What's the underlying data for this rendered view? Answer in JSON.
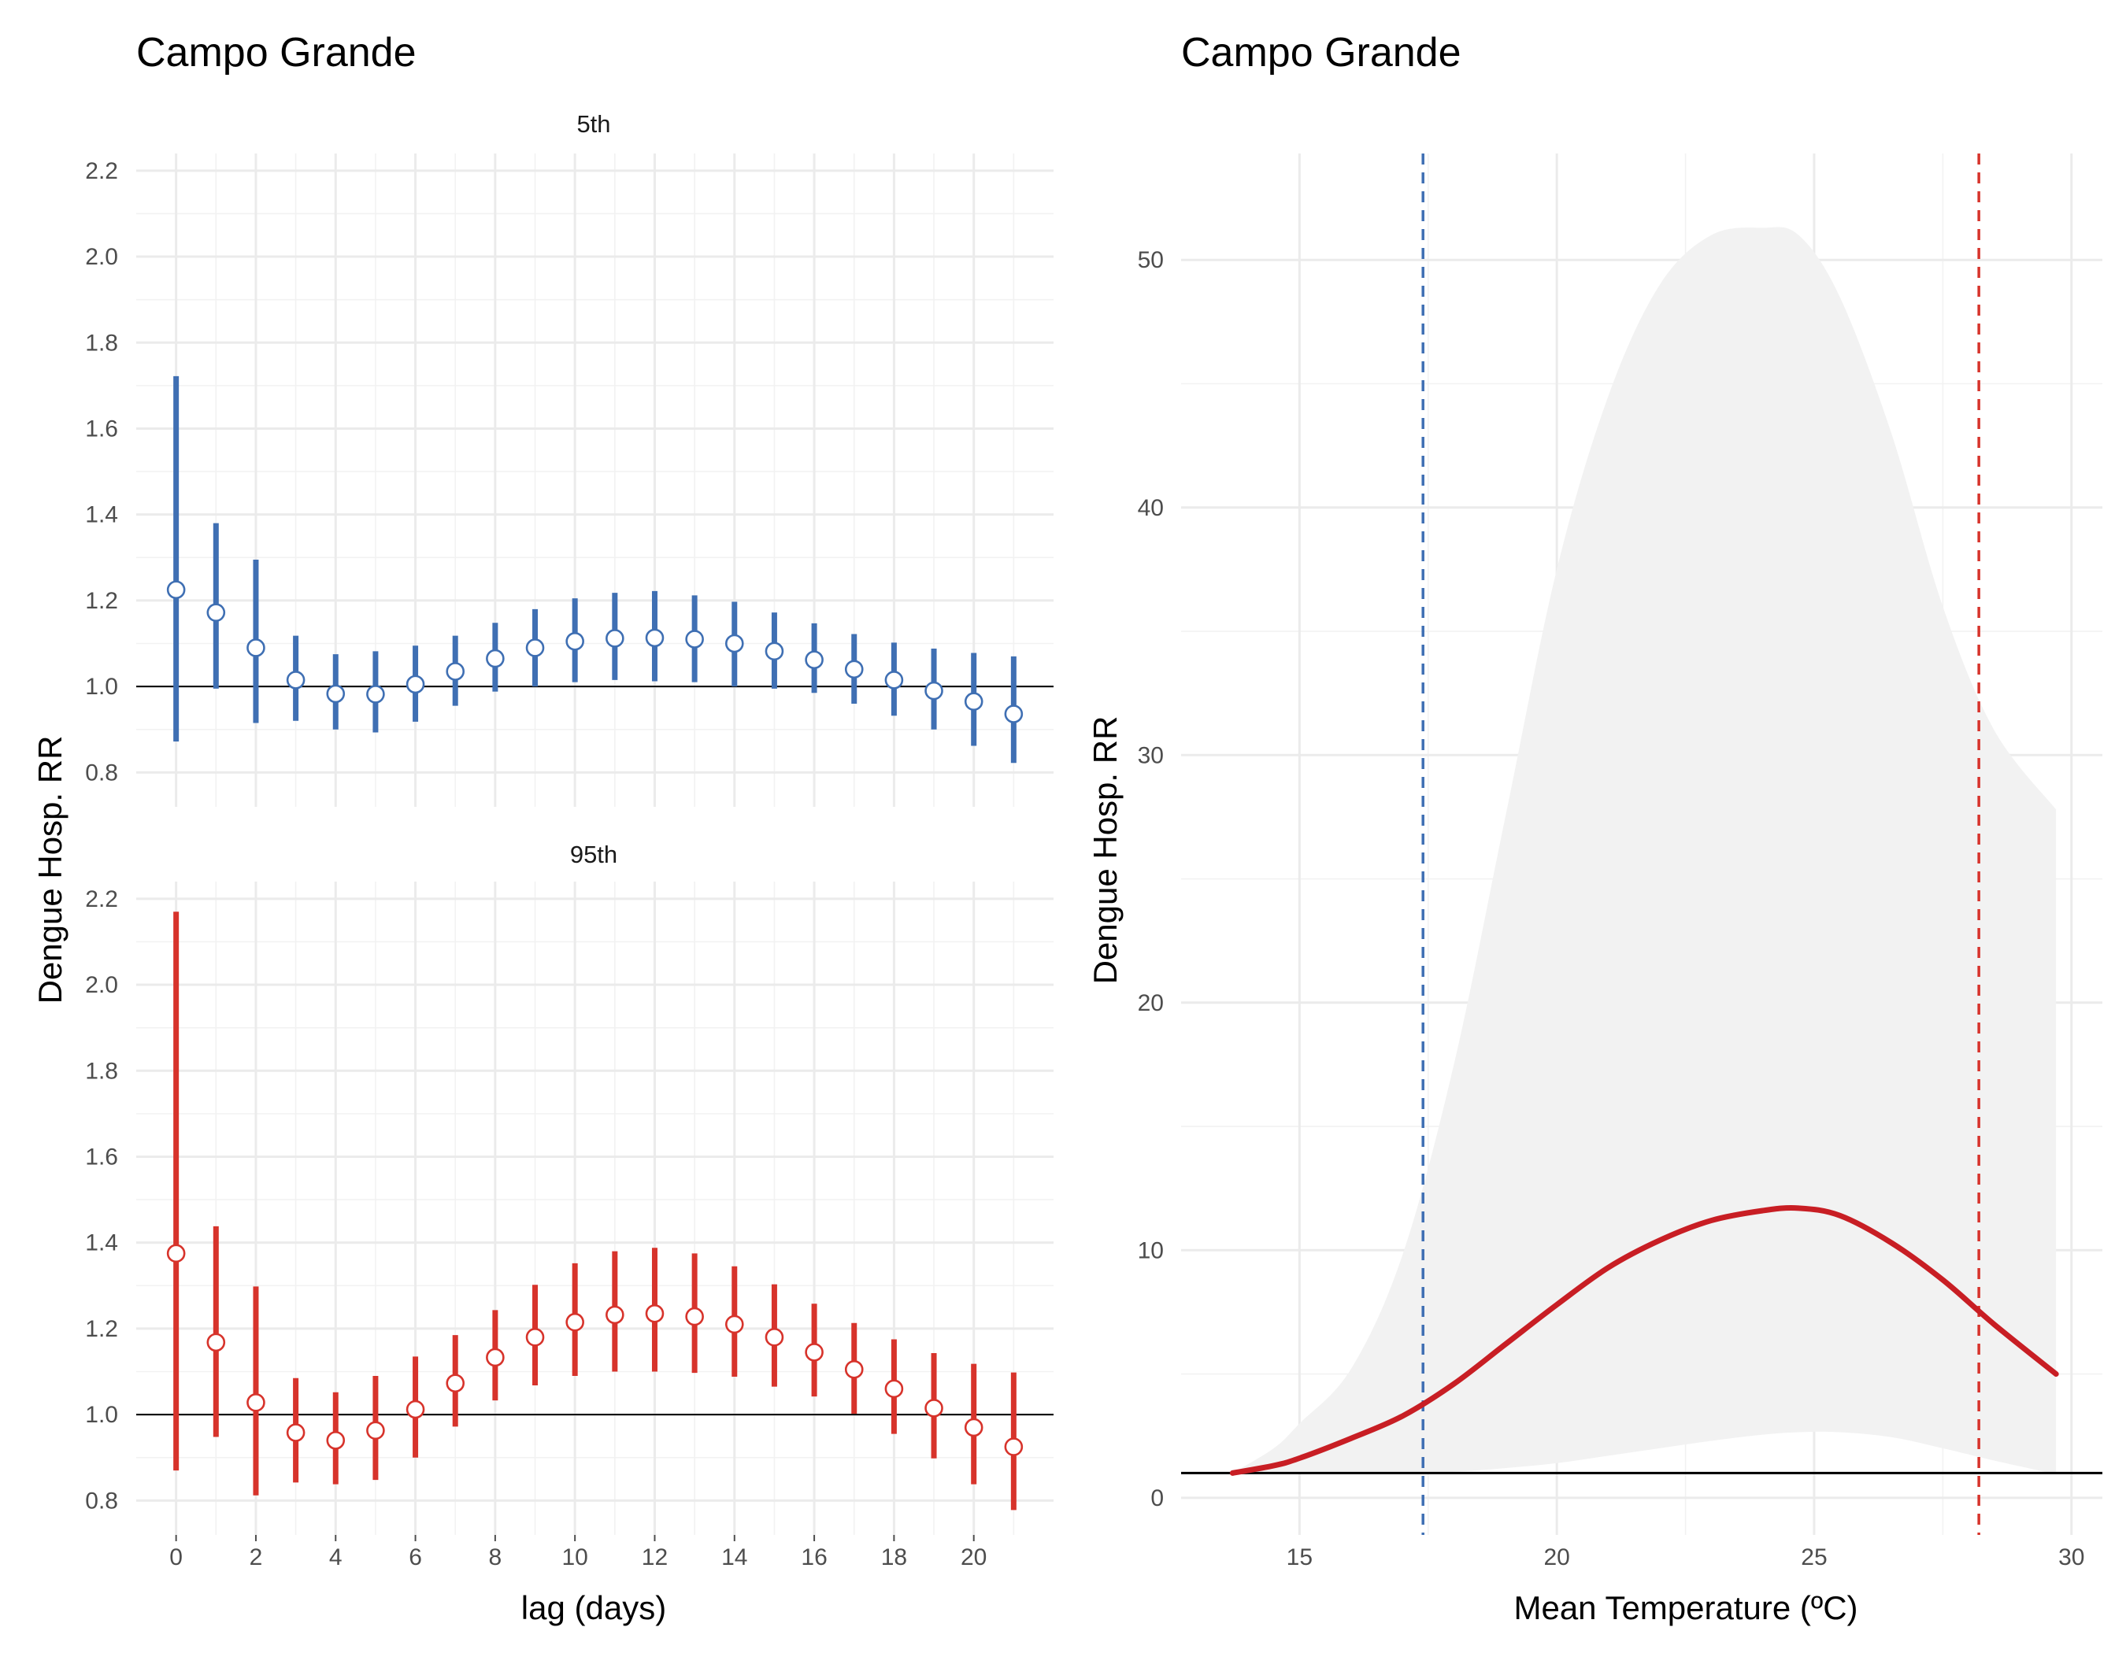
{
  "chart_data": [
    {
      "type": "errorbar",
      "title": "Campo Grande",
      "ylabel": "Dengue Hosp. RR",
      "xlabel": "lag (days)",
      "reference_line": 1.0,
      "panels": [
        {
          "label": "5th",
          "color": "#3f6fb3",
          "x": [
            0,
            1,
            2,
            3,
            4,
            5,
            6,
            7,
            8,
            9,
            10,
            11,
            12,
            13,
            14,
            15,
            16,
            17,
            18,
            19,
            20,
            21
          ],
          "est": [
            1.225,
            1.172,
            1.09,
            1.015,
            0.983,
            0.982,
            1.005,
            1.035,
            1.065,
            1.09,
            1.105,
            1.112,
            1.113,
            1.11,
            1.1,
            1.082,
            1.062,
            1.04,
            1.015,
            0.99,
            0.965,
            0.936
          ],
          "lower": [
            0.872,
            0.995,
            0.915,
            0.92,
            0.9,
            0.893,
            0.918,
            0.955,
            0.988,
            1.0,
            1.01,
            1.015,
            1.012,
            1.01,
            1.0,
            0.995,
            0.985,
            0.96,
            0.932,
            0.9,
            0.862,
            0.822
          ],
          "upper": [
            1.722,
            1.38,
            1.295,
            1.118,
            1.075,
            1.082,
            1.095,
            1.118,
            1.148,
            1.18,
            1.205,
            1.218,
            1.222,
            1.212,
            1.197,
            1.172,
            1.147,
            1.122,
            1.102,
            1.088,
            1.078,
            1.07
          ]
        },
        {
          "label": "95th",
          "color": "#d7332b",
          "x": [
            0,
            1,
            2,
            3,
            4,
            5,
            6,
            7,
            8,
            9,
            10,
            11,
            12,
            13,
            14,
            15,
            16,
            17,
            18,
            19,
            20,
            21
          ],
          "est": [
            1.375,
            1.168,
            1.028,
            0.958,
            0.94,
            0.963,
            1.012,
            1.073,
            1.133,
            1.18,
            1.215,
            1.232,
            1.235,
            1.228,
            1.21,
            1.18,
            1.145,
            1.105,
            1.06,
            1.015,
            0.97,
            0.925
          ],
          "lower": [
            0.87,
            0.948,
            0.812,
            0.842,
            0.838,
            0.848,
            0.9,
            0.972,
            1.033,
            1.068,
            1.09,
            1.1,
            1.1,
            1.097,
            1.088,
            1.065,
            1.042,
            1.002,
            0.955,
            0.898,
            0.838,
            0.778
          ],
          "upper": [
            2.17,
            1.438,
            1.298,
            1.085,
            1.052,
            1.09,
            1.135,
            1.185,
            1.243,
            1.302,
            1.352,
            1.38,
            1.388,
            1.375,
            1.345,
            1.303,
            1.258,
            1.213,
            1.175,
            1.143,
            1.118,
            1.098
          ]
        }
      ],
      "xticks": [
        0,
        2,
        4,
        6,
        8,
        10,
        12,
        14,
        16,
        18,
        20
      ],
      "yticks": [
        0.8,
        1.0,
        1.2,
        1.4,
        1.6,
        1.8,
        2.0,
        2.2
      ],
      "ytick_labels": [
        "0.8",
        "1.0",
        "1.2",
        "1.4",
        "1.6",
        "1.8",
        "2.0",
        "2.2"
      ],
      "xlim": [
        -1,
        22
      ],
      "ylim": [
        0.72,
        2.24
      ]
    },
    {
      "type": "line",
      "title": "Campo Grande",
      "ylabel": "Dengue Hosp. RR",
      "xlabel": "Mean Temperature (ºC)",
      "reference_line": 1.0,
      "line_color": "#c81e24",
      "band_color": "#f2f2f2",
      "vlines": [
        {
          "x": 17.4,
          "color": "#3f6fb3",
          "style": "dashed"
        },
        {
          "x": 28.2,
          "color": "#d7332b",
          "style": "dashed"
        }
      ],
      "x": [
        13.7,
        14.5,
        15.0,
        16.0,
        17.0,
        18.0,
        19.0,
        20.0,
        21.0,
        22.0,
        23.0,
        24.0,
        24.7,
        25.5,
        26.5,
        27.5,
        28.5,
        29.7
      ],
      "y": [
        1.0,
        1.3,
        1.6,
        2.4,
        3.3,
        4.6,
        6.2,
        7.8,
        9.3,
        10.4,
        11.2,
        11.6,
        11.7,
        11.4,
        10.3,
        8.8,
        7.0,
        5.0
      ],
      "lower": [
        1.0,
        1.0,
        1.0,
        1.0,
        1.0,
        1.05,
        1.2,
        1.4,
        1.7,
        2.0,
        2.3,
        2.55,
        2.65,
        2.65,
        2.45,
        2.0,
        1.5,
        0.95
      ],
      "upper": [
        1.0,
        2.0,
        3.0,
        5.2,
        9.8,
        17.5,
        27.5,
        37.5,
        44.5,
        49.0,
        51.0,
        51.3,
        51.0,
        48.5,
        43.0,
        36.0,
        31.0,
        27.8
      ],
      "xticks": [
        15,
        20,
        25,
        30
      ],
      "yticks": [
        0,
        10,
        20,
        30,
        40,
        50
      ],
      "xlim": [
        12.7,
        30.6
      ],
      "ylim": [
        -1.5,
        54.3
      ]
    }
  ]
}
